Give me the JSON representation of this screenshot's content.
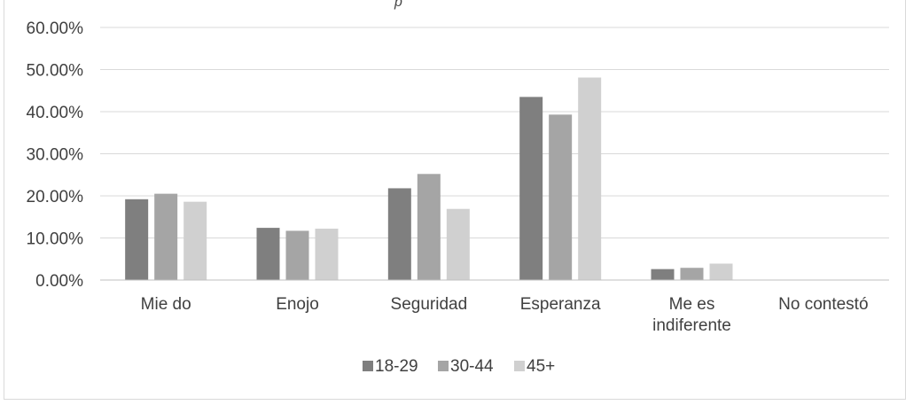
{
  "chart_data": {
    "type": "bar",
    "title_fragment": "p",
    "categories": [
      [
        "Mie do"
      ],
      [
        "Enojo"
      ],
      [
        "Seguridad"
      ],
      [
        "Esperanza"
      ],
      [
        "Me es",
        "indiferente"
      ],
      [
        "No contestó"
      ]
    ],
    "series": [
      {
        "name": "18-29",
        "color": "#7f7f7f",
        "values": [
          19.2,
          12.4,
          21.8,
          43.5,
          2.6,
          0
        ]
      },
      {
        "name": "30-44",
        "color": "#a5a5a5",
        "values": [
          20.5,
          11.7,
          25.2,
          39.3,
          2.9,
          0
        ]
      },
      {
        "name": "45+",
        "color": "#d0d0d0",
        "values": [
          18.6,
          12.2,
          16.9,
          48.1,
          3.9,
          0
        ]
      }
    ],
    "y_ticks": [
      "0.00%",
      "10.00%",
      "20.00%",
      "30.00%",
      "40.00%",
      "50.00%",
      "60.00%"
    ],
    "ylim": [
      0,
      60
    ],
    "grid": true,
    "legend_position": "bottom"
  }
}
